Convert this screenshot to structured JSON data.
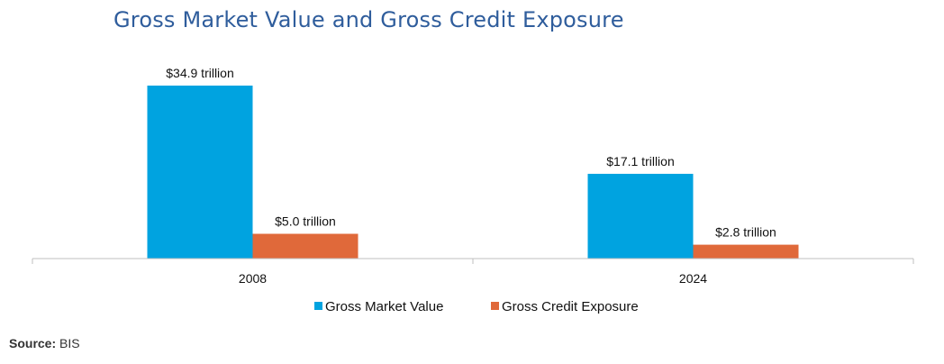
{
  "chart_data": {
    "type": "bar",
    "title": "Gross Market Value and Gross Credit Exposure",
    "categories": [
      "2008",
      "2024"
    ],
    "series": [
      {
        "name": "Gross Market Value",
        "values": [
          34.9,
          17.1
        ],
        "labels": [
          "$34.9 trillion",
          "$17.1 trillion"
        ],
        "color": "#00a3e0"
      },
      {
        "name": "Gross Credit Exposure",
        "values": [
          5.0,
          2.8
        ],
        "labels": [
          "$5.0 trillion",
          "$2.8 trillion"
        ],
        "color": "#e0693a"
      }
    ],
    "ylim": [
      0,
      35
    ],
    "grid": false,
    "legend": "bottom"
  },
  "source": {
    "label": "Source:",
    "value": "BIS"
  }
}
